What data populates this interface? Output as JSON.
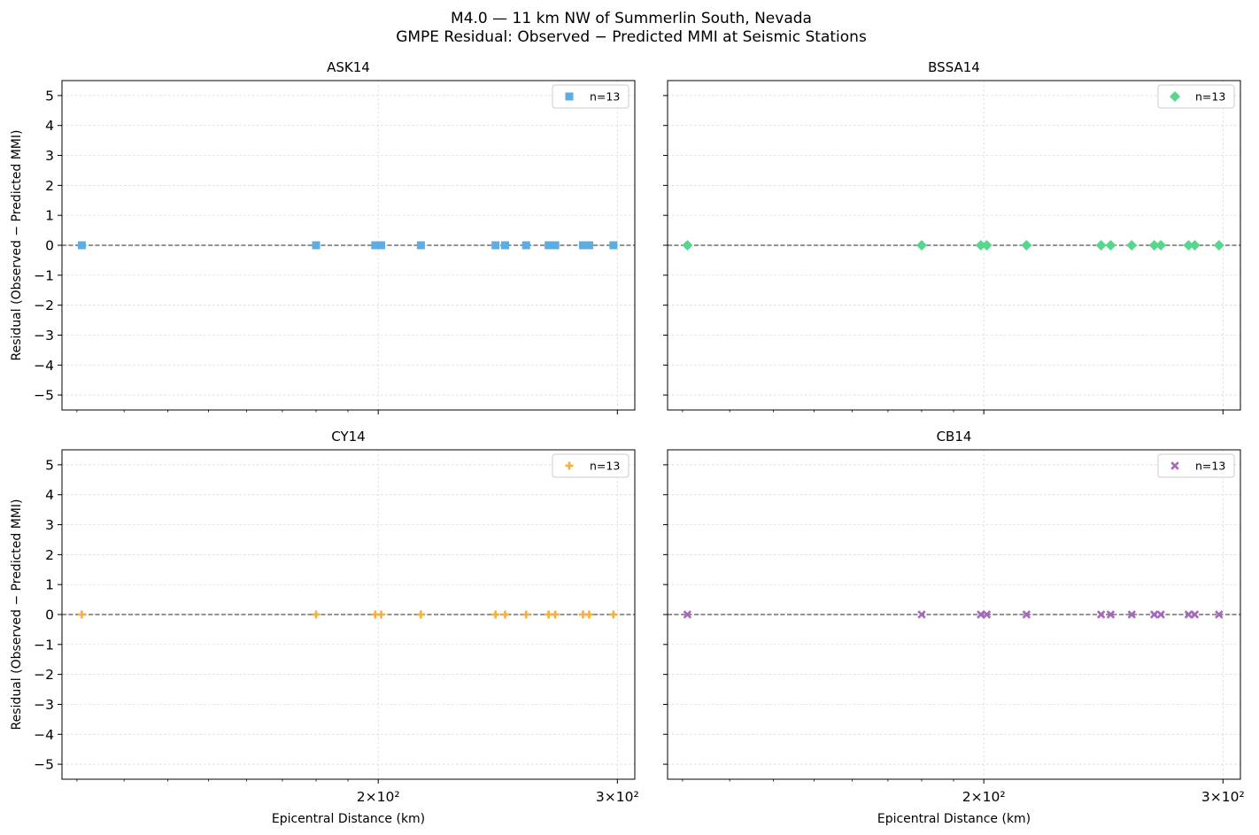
{
  "figure": {
    "title_line1": "M4.0 — 11 km NW of Summerlin South, Nevada",
    "title_line2": "GMPE Residual: Observed − Predicted MMI at Seismic Stations"
  },
  "chart_data": [
    {
      "type": "scatter",
      "title": "ASK14",
      "xlabel": "",
      "ylabel": "Residual (Observed − Predicted MMI)",
      "xscale": "log",
      "xlim": [
        117,
        309
      ],
      "ylim": [
        -5.5,
        5.5
      ],
      "x_ticks": [
        {
          "value": 200,
          "label": "2×10²"
        },
        {
          "value": 300,
          "label": "3×10²"
        }
      ],
      "y_ticks": [
        5,
        4,
        3,
        2,
        1,
        0,
        -1,
        -2,
        -3,
        -4,
        -5
      ],
      "y_tick_labels": [
        "5",
        "4",
        "3",
        "2",
        "1",
        "0",
        "−1",
        "−2",
        "−3",
        "−4",
        "−5"
      ],
      "grid": true,
      "zero_line": true,
      "legend_position": "upper-right",
      "series": [
        {
          "legend": "n=13",
          "marker": "square",
          "color": "#5dade2",
          "x": [
            121,
            180,
            199,
            201,
            215,
            244,
            248,
            257,
            267,
            270,
            283,
            286,
            298
          ],
          "y": [
            0,
            0,
            0,
            0,
            0,
            0,
            0,
            0,
            0,
            0,
            0,
            0,
            0
          ]
        }
      ]
    },
    {
      "type": "scatter",
      "title": "BSSA14",
      "xlabel": "",
      "ylabel": "",
      "xscale": "log",
      "xlim": [
        117,
        309
      ],
      "ylim": [
        -5.5,
        5.5
      ],
      "x_ticks": [
        {
          "value": 200,
          "label": "2×10²"
        },
        {
          "value": 300,
          "label": "3×10²"
        }
      ],
      "y_ticks": [
        5,
        4,
        3,
        2,
        1,
        0,
        -1,
        -2,
        -3,
        -4,
        -5
      ],
      "y_tick_labels": [],
      "grid": true,
      "zero_line": true,
      "legend_position": "upper-right",
      "series": [
        {
          "legend": "n=13",
          "marker": "diamond",
          "color": "#58d68d",
          "x": [
            121,
            180,
            199,
            201,
            215,
            244,
            248,
            257,
            267,
            270,
            283,
            286,
            298
          ],
          "y": [
            0,
            0,
            0,
            0,
            0,
            0,
            0,
            0,
            0,
            0,
            0,
            0,
            0
          ]
        }
      ]
    },
    {
      "type": "scatter",
      "title": "CY14",
      "xlabel": "Epicentral Distance (km)",
      "ylabel": "Residual (Observed − Predicted MMI)",
      "xscale": "log",
      "xlim": [
        117,
        309
      ],
      "ylim": [
        -5.5,
        5.5
      ],
      "x_ticks": [
        {
          "value": 200,
          "label": "2×10²"
        },
        {
          "value": 300,
          "label": "3×10²"
        }
      ],
      "y_ticks": [
        5,
        4,
        3,
        2,
        1,
        0,
        -1,
        -2,
        -3,
        -4,
        -5
      ],
      "y_tick_labels": [
        "5",
        "4",
        "3",
        "2",
        "1",
        "0",
        "−1",
        "−2",
        "−3",
        "−4",
        "−5"
      ],
      "grid": true,
      "zero_line": true,
      "legend_position": "upper-right",
      "series": [
        {
          "legend": "n=13",
          "marker": "plus",
          "color": "#f5b041",
          "x": [
            121,
            180,
            199,
            201,
            215,
            244,
            248,
            257,
            267,
            270,
            283,
            286,
            298
          ],
          "y": [
            0,
            0,
            0,
            0,
            0,
            0,
            0,
            0,
            0,
            0,
            0,
            0,
            0
          ]
        }
      ]
    },
    {
      "type": "scatter",
      "title": "CB14",
      "xlabel": "Epicentral Distance (km)",
      "ylabel": "",
      "xscale": "log",
      "xlim": [
        117,
        309
      ],
      "ylim": [
        -5.5,
        5.5
      ],
      "x_ticks": [
        {
          "value": 200,
          "label": "2×10²"
        },
        {
          "value": 300,
          "label": "3×10²"
        }
      ],
      "y_ticks": [
        5,
        4,
        3,
        2,
        1,
        0,
        -1,
        -2,
        -3,
        -4,
        -5
      ],
      "y_tick_labels": [],
      "grid": true,
      "zero_line": true,
      "legend_position": "upper-right",
      "series": [
        {
          "legend": "n=13",
          "marker": "x",
          "color": "#a569bd",
          "x": [
            121,
            180,
            199,
            201,
            215,
            244,
            248,
            257,
            267,
            270,
            283,
            286,
            298
          ],
          "y": [
            0,
            0,
            0,
            0,
            0,
            0,
            0,
            0,
            0,
            0,
            0,
            0,
            0
          ]
        }
      ]
    }
  ]
}
